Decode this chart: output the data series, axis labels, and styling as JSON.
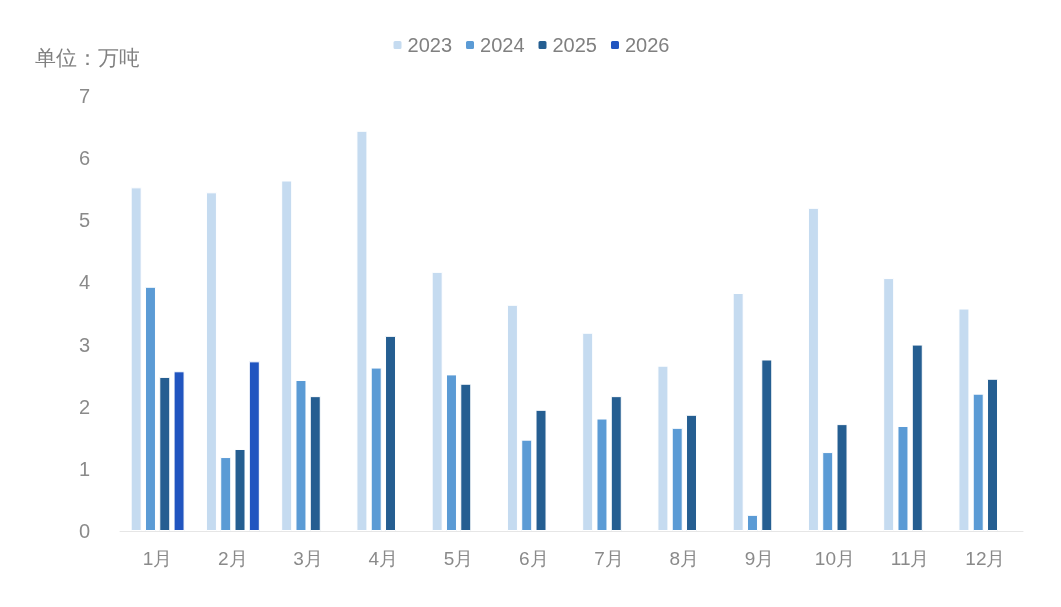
{
  "chart_data": {
    "type": "bar",
    "ylabel": "单位：万吨",
    "categories": [
      "1月",
      "2月",
      "3月",
      "4月",
      "5月",
      "6月",
      "7月",
      "8月",
      "9月",
      "10月",
      "11月",
      "12月"
    ],
    "series": [
      {
        "name": "2023",
        "color": "#c5dbf0",
        "values": [
          5.53,
          5.45,
          5.64,
          6.44,
          4.17,
          3.64,
          3.19,
          2.66,
          3.83,
          5.2,
          4.07,
          3.58
        ]
      },
      {
        "name": "2024",
        "color": "#5b9bd5",
        "values": [
          3.93,
          1.19,
          2.43,
          2.63,
          2.52,
          1.47,
          1.81,
          1.66,
          0.26,
          1.27,
          1.69,
          2.21
        ]
      },
      {
        "name": "2025",
        "color": "#255e91",
        "values": [
          2.48,
          1.32,
          2.17,
          3.14,
          2.37,
          1.95,
          2.17,
          1.87,
          2.76,
          1.72,
          3.0,
          2.45
        ]
      },
      {
        "name": "2026",
        "color": "#2155c0",
        "values": [
          2.57,
          2.73,
          null,
          null,
          null,
          null,
          null,
          null,
          null,
          null,
          null,
          null
        ]
      }
    ],
    "ylim": [
      0,
      7
    ],
    "yticks": [
      0,
      1,
      2,
      3,
      4,
      5,
      6,
      7
    ],
    "grid": false,
    "legend": "top"
  }
}
